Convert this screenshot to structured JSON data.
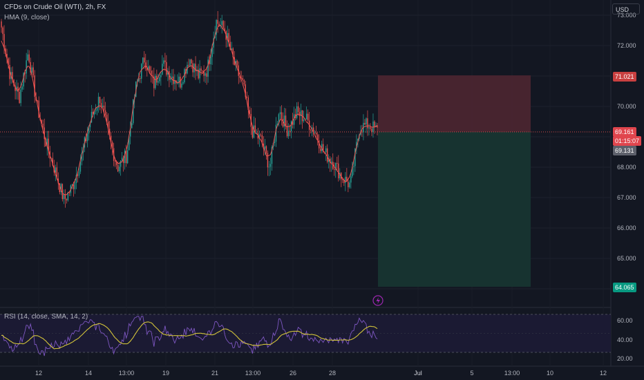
{
  "header": {
    "symbol": "CFDs on Crude Oil (WTI), 2h, FX",
    "indicator": "HMA (9, close)",
    "currency": "USD"
  },
  "rsi_panel": {
    "label": "RSI (14, close, SMA, 14, 2)"
  },
  "price_tags": {
    "stop": "71.021",
    "current": "69.161",
    "countdown": "01:15:07",
    "bid": "69.131",
    "target": "64.065"
  },
  "colors": {
    "background": "#131722",
    "up": "#26a69a",
    "down": "#ef5350",
    "hma": "#ef5350",
    "rsi": "#7e57c2",
    "rsi_ma": "#d4c53a",
    "stop_zone": "#4a2530",
    "target_zone": "#173532"
  },
  "chart_data": {
    "type": "candlestick",
    "price_axis": [
      "73.000",
      "72.000",
      "71.000",
      "70.000",
      "69.000",
      "68.000",
      "67.000",
      "66.000",
      "65.000",
      "64.000"
    ],
    "time_axis": [
      "12",
      "14",
      "13:00",
      "19",
      "21",
      "13:00",
      "26",
      "28",
      "Jul",
      "5",
      "13:00",
      "10",
      "12"
    ],
    "rsi_axis": [
      "60.00",
      "40.00",
      "20.00"
    ],
    "ylim": [
      63.3,
      73.3
    ],
    "close_path": [
      72.6,
      71.0,
      70.3,
      71.8,
      70.0,
      68.8,
      67.9,
      66.9,
      67.4,
      68.4,
      69.6,
      70.3,
      69.0,
      68.0,
      68.4,
      70.6,
      71.6,
      70.7,
      71.4,
      71.0,
      70.8,
      71.6,
      71.0,
      71.2,
      72.8,
      72.5,
      71.4,
      70.7,
      69.2,
      68.9,
      68.0,
      69.9,
      69.2,
      69.8,
      69.6,
      69.2,
      68.5,
      68.2,
      67.7,
      67.4,
      69.3,
      69.4,
      69.2
    ],
    "position": {
      "entry": 69.161,
      "stop": 71.021,
      "target": 64.065
    },
    "rsi_guides": [
      70,
      30
    ]
  }
}
